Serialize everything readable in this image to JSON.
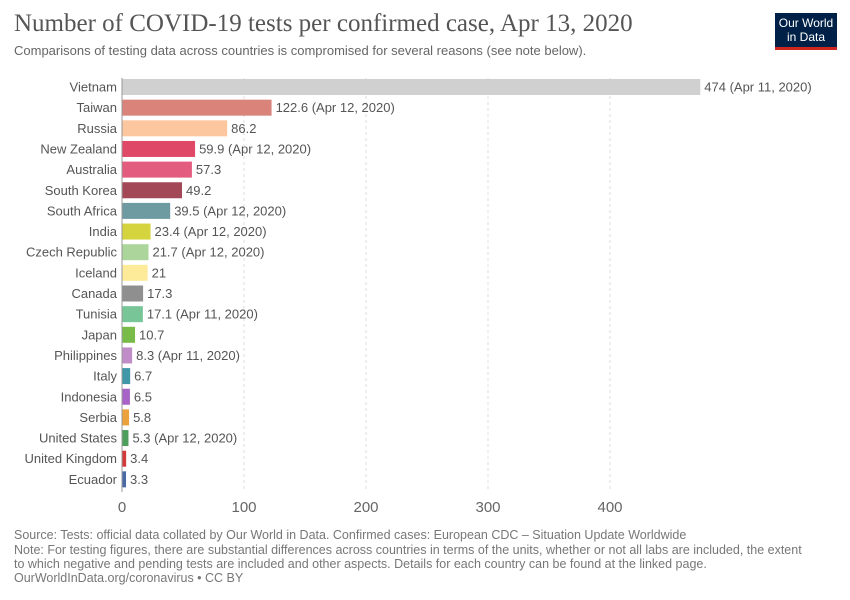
{
  "title": "Number of COVID-19 tests per confirmed case, Apr 13, 2020",
  "subtitle": "Comparisons of testing data across countries is compromised for several reasons (see note below).",
  "logo": "Our World in Data",
  "logo_lines": [
    "Our World",
    "in Data"
  ],
  "footer": {
    "source": "Source: Tests: official data collated by Our World in Data. Confirmed cases: European CDC – Situation Update Worldwide",
    "note1": "Note: For testing figures, there are substantial differences across countries in terms of the units, whether or not all labs are included, the extent",
    "note2": "to which negative and pending tests are included and other aspects. Details for each country can be found at the linked page.",
    "link": "OurWorldInData.org/coronavirus • CC BY"
  },
  "chart_data": {
    "type": "bar",
    "orientation": "horizontal",
    "xlim": [
      0,
      474
    ],
    "xticks": [
      0,
      100,
      200,
      300,
      400
    ],
    "grid": true,
    "categories": [
      "Vietnam",
      "Taiwan",
      "Russia",
      "New Zealand",
      "Australia",
      "South Korea",
      "South Africa",
      "India",
      "Czech Republic",
      "Iceland",
      "Canada",
      "Tunisia",
      "Japan",
      "Philippines",
      "Italy",
      "Indonesia",
      "Serbia",
      "United States",
      "United Kingdom",
      "Ecuador"
    ],
    "values": [
      474,
      122.6,
      86.2,
      59.9,
      57.3,
      49.2,
      39.5,
      23.4,
      21.7,
      21,
      17.3,
      17.1,
      10.7,
      8.3,
      6.7,
      6.5,
      5.8,
      5.3,
      3.4,
      3.3
    ],
    "labels": [
      "474 (Apr 11, 2020)",
      "122.6 (Apr 12, 2020)",
      "86.2",
      "59.9 (Apr 12, 2020)",
      "57.3",
      "49.2",
      "39.5 (Apr 12, 2020)",
      "23.4 (Apr 12, 2020)",
      "21.7 (Apr 12, 2020)",
      "21",
      "17.3",
      "17.1 (Apr 11, 2020)",
      "10.7",
      "8.3 (Apr 11, 2020)",
      "6.7",
      "6.5",
      "5.8",
      "5.3 (Apr 12, 2020)",
      "3.4",
      "3.3"
    ],
    "colors": [
      "#d0d0d0",
      "#d9837b",
      "#fcc79f",
      "#e04868",
      "#e35b7e",
      "#a24857",
      "#6e9aa2",
      "#d5d43e",
      "#abd59a",
      "#fdeb99",
      "#8f8f8f",
      "#78c597",
      "#79bb48",
      "#c18dc8",
      "#3f97a8",
      "#a863c6",
      "#eba13c",
      "#4e9f5c",
      "#d33a3a",
      "#4a6aa6"
    ]
  }
}
